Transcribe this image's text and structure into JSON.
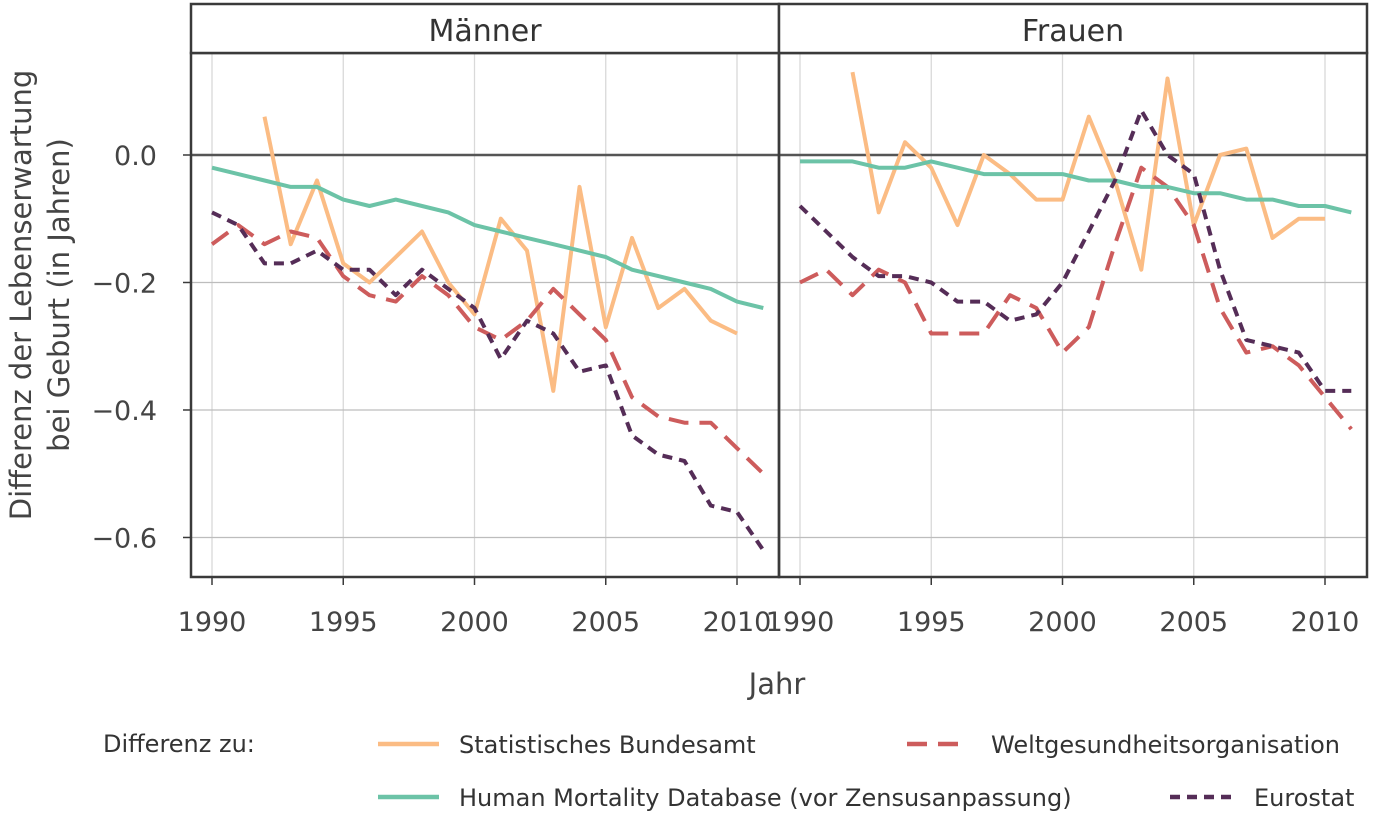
{
  "chart_data": {
    "type": "line",
    "title": "",
    "xlabel": "Jahr",
    "ylabel_line1": "Differenz der Lebenserwartung",
    "ylabel_line2": "bei Geburt (in Jahren)",
    "xlim": [
      1989.2,
      2011.6
    ],
    "ylim": [
      -0.662,
      0.16
    ],
    "xticks": [
      1990,
      1995,
      2000,
      2005,
      2010
    ],
    "yticks": [
      0.0,
      -0.2,
      -0.4,
      -0.6
    ],
    "ytick_labels": [
      "0.0",
      "−0.2",
      "−0.4",
      "−0.6"
    ],
    "grid": true,
    "legend_position": "bottom",
    "legend_title": "Differenz zu:",
    "series_styles": [
      {
        "key": "destatis",
        "name": "Statistisches Bundesamt",
        "color": "#fbbc84",
        "dash": "solid"
      },
      {
        "key": "who",
        "name": "Weltgesundheitsorganisation",
        "color": "#cd5c5c",
        "dash": "long-dash"
      },
      {
        "key": "hmd",
        "name": "Human Mortality Database (vor Zensusanpassung)",
        "color": "#6cc3a7",
        "dash": "solid"
      },
      {
        "key": "eurostat",
        "name": "Eurostat",
        "color": "#552d57",
        "dash": "short-dash"
      }
    ],
    "panels": [
      {
        "label": "Männer",
        "series": [
          {
            "key": "destatis",
            "x": [
              1992,
              1993,
              1994,
              1995,
              1996,
              1997,
              1998,
              1999,
              2000,
              2001,
              2002,
              2003,
              2004,
              2005,
              2006,
              2007,
              2008,
              2009,
              2010
            ],
            "values": [
              0.06,
              -0.14,
              -0.04,
              -0.17,
              -0.2,
              -0.16,
              -0.12,
              -0.2,
              -0.25,
              -0.1,
              -0.15,
              -0.37,
              -0.05,
              -0.27,
              -0.13,
              -0.24,
              -0.21,
              -0.26,
              -0.28
            ]
          },
          {
            "key": "who",
            "x": [
              1990,
              1991,
              1992,
              1993,
              1994,
              1995,
              1996,
              1997,
              1998,
              1999,
              2000,
              2001,
              2002,
              2003,
              2004,
              2005,
              2006,
              2007,
              2008,
              2009,
              2010,
              2011
            ],
            "values": [
              -0.14,
              -0.11,
              -0.14,
              -0.12,
              -0.13,
              -0.19,
              -0.22,
              -0.23,
              -0.19,
              -0.22,
              -0.27,
              -0.29,
              -0.26,
              -0.21,
              -0.25,
              -0.29,
              -0.38,
              -0.41,
              -0.42,
              -0.42,
              -0.46,
              -0.5
            ]
          },
          {
            "key": "hmd",
            "x": [
              1990,
              1991,
              1992,
              1993,
              1994,
              1995,
              1996,
              1997,
              1998,
              1999,
              2000,
              2001,
              2002,
              2003,
              2004,
              2005,
              2006,
              2007,
              2008,
              2009,
              2010,
              2011
            ],
            "values": [
              -0.02,
              -0.03,
              -0.04,
              -0.05,
              -0.05,
              -0.07,
              -0.08,
              -0.07,
              -0.08,
              -0.09,
              -0.11,
              -0.12,
              -0.13,
              -0.14,
              -0.15,
              -0.16,
              -0.18,
              -0.19,
              -0.2,
              -0.21,
              -0.23,
              -0.24
            ]
          },
          {
            "key": "eurostat",
            "x": [
              1990,
              1991,
              1992,
              1993,
              1994,
              1995,
              1996,
              1997,
              1998,
              1999,
              2000,
              2001,
              2002,
              2003,
              2004,
              2005,
              2006,
              2007,
              2008,
              2009,
              2010,
              2011
            ],
            "values": [
              -0.09,
              -0.11,
              -0.17,
              -0.17,
              -0.15,
              -0.18,
              -0.18,
              -0.22,
              -0.18,
              -0.21,
              -0.24,
              -0.32,
              -0.26,
              -0.28,
              -0.34,
              -0.33,
              -0.44,
              -0.47,
              -0.48,
              -0.55,
              -0.56,
              -0.62
            ]
          }
        ]
      },
      {
        "label": "Frauen",
        "series": [
          {
            "key": "destatis",
            "x": [
              1992,
              1993,
              1994,
              1995,
              1996,
              1997,
              1998,
              1999,
              2000,
              2001,
              2002,
              2003,
              2004,
              2005,
              2006,
              2007,
              2008,
              2009,
              2010
            ],
            "values": [
              0.13,
              -0.09,
              0.02,
              -0.02,
              -0.11,
              0.0,
              -0.03,
              -0.07,
              -0.07,
              0.06,
              -0.04,
              -0.18,
              0.12,
              -0.11,
              0.0,
              0.01,
              -0.13,
              -0.1,
              -0.1
            ]
          },
          {
            "key": "who",
            "x": [
              1990,
              1991,
              1992,
              1993,
              1994,
              1995,
              1996,
              1997,
              1998,
              1999,
              2000,
              2001,
              2002,
              2003,
              2004,
              2005,
              2006,
              2007,
              2008,
              2009,
              2010,
              2011
            ],
            "values": [
              -0.2,
              -0.18,
              -0.22,
              -0.18,
              -0.2,
              -0.28,
              -0.28,
              -0.28,
              -0.22,
              -0.24,
              -0.31,
              -0.27,
              -0.14,
              -0.02,
              -0.05,
              -0.11,
              -0.24,
              -0.31,
              -0.3,
              -0.33,
              -0.38,
              -0.43
            ]
          },
          {
            "key": "hmd",
            "x": [
              1990,
              1991,
              1992,
              1993,
              1994,
              1995,
              1996,
              1997,
              1998,
              1999,
              2000,
              2001,
              2002,
              2003,
              2004,
              2005,
              2006,
              2007,
              2008,
              2009,
              2010,
              2011
            ],
            "values": [
              -0.01,
              -0.01,
              -0.01,
              -0.02,
              -0.02,
              -0.01,
              -0.02,
              -0.03,
              -0.03,
              -0.03,
              -0.03,
              -0.04,
              -0.04,
              -0.05,
              -0.05,
              -0.06,
              -0.06,
              -0.07,
              -0.07,
              -0.08,
              -0.08,
              -0.09
            ]
          },
          {
            "key": "eurostat",
            "x": [
              1990,
              1991,
              1992,
              1993,
              1994,
              1995,
              1996,
              1997,
              1998,
              1999,
              2000,
              2001,
              2002,
              2003,
              2004,
              2005,
              2006,
              2007,
              2008,
              2009,
              2010,
              2011
            ],
            "values": [
              -0.08,
              -0.12,
              -0.16,
              -0.19,
              -0.19,
              -0.2,
              -0.23,
              -0.23,
              -0.26,
              -0.25,
              -0.2,
              -0.12,
              -0.04,
              0.07,
              0.0,
              -0.03,
              -0.18,
              -0.29,
              -0.3,
              -0.31,
              -0.37,
              -0.37
            ]
          }
        ]
      }
    ]
  }
}
